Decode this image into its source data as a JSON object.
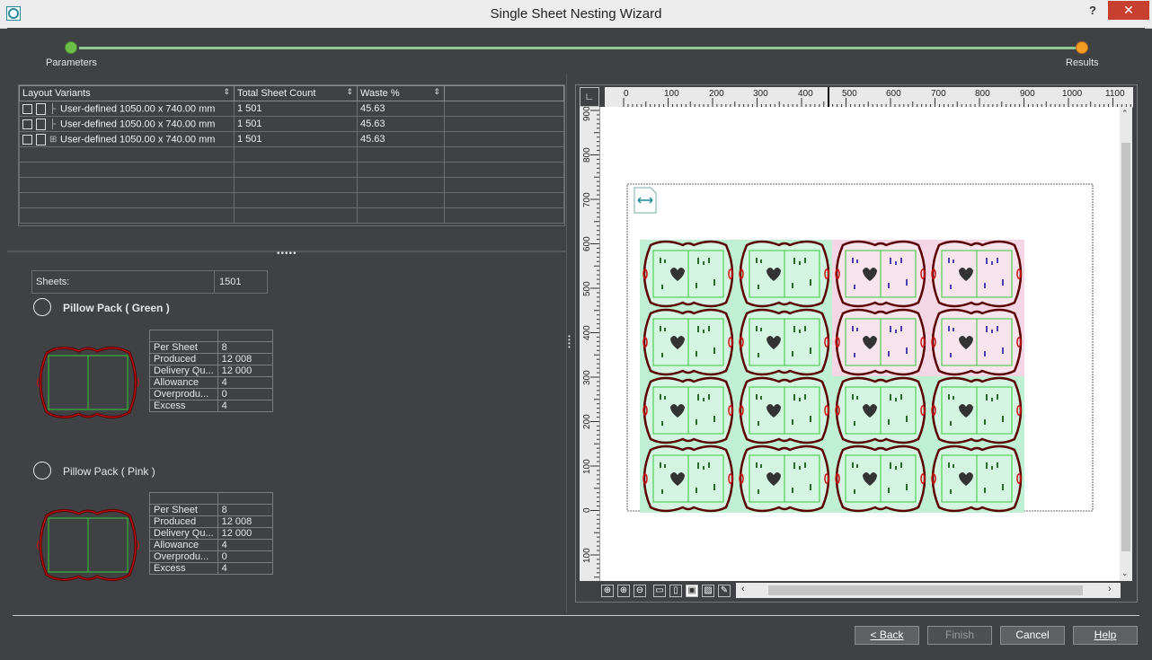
{
  "window": {
    "title": "Single Sheet Nesting Wizard",
    "help_glyph": "?",
    "close_glyph": "✕"
  },
  "stepper": {
    "step1": "Parameters",
    "step2": "Results"
  },
  "grid": {
    "columns": [
      "Layout Variants",
      "Total Sheet Count",
      "Waste %"
    ],
    "rows": [
      {
        "variant": "User-defined 1050.00 x 740.00  mm",
        "count": "1 501",
        "waste": "45.63"
      },
      {
        "variant": "User-defined 1050.00 x 740.00  mm",
        "count": "1 501",
        "waste": "45.63"
      },
      {
        "variant": "User-defined 1050.00 x 740.00  mm",
        "count": "1 501",
        "waste": "45.63"
      }
    ]
  },
  "summary": {
    "sheets_label": "Sheets:",
    "sheets_value": "1501"
  },
  "products": [
    {
      "name": "Pillow Pack ( Green )",
      "stats": [
        {
          "k": "Per Sheet",
          "v": "8"
        },
        {
          "k": "Produced",
          "v": "12 008"
        },
        {
          "k": "Delivery Qu...",
          "v": "12 000"
        },
        {
          "k": "Allowance",
          "v": "4"
        },
        {
          "k": "Overprodu...",
          "v": "0"
        },
        {
          "k": "Excess",
          "v": "4"
        }
      ]
    },
    {
      "name": "Pillow Pack ( Pink )",
      "stats": [
        {
          "k": "Per Sheet",
          "v": "8"
        },
        {
          "k": "Produced",
          "v": "12 008"
        },
        {
          "k": "Delivery Qu...",
          "v": "12 000"
        },
        {
          "k": "Allowance",
          "v": "4"
        },
        {
          "k": "Overprodu...",
          "v": "0"
        },
        {
          "k": "Excess",
          "v": "4"
        }
      ]
    }
  ],
  "ruler": {
    "top": [
      "0",
      "100",
      "200",
      "300",
      "400",
      "500",
      "600",
      "700",
      "800",
      "900",
      "1000",
      "1100"
    ],
    "left": [
      "900",
      "800",
      "700",
      "600",
      "500",
      "400",
      "300",
      "200",
      "100",
      "0",
      "100"
    ]
  },
  "buttons": {
    "back": "< Back",
    "finish": "Finish",
    "cancel": "Cancel",
    "help": "Help"
  },
  "colors": {
    "accent_green": "#6cc04a",
    "accent_orange": "#f39c24",
    "close_red": "#c7402f"
  }
}
